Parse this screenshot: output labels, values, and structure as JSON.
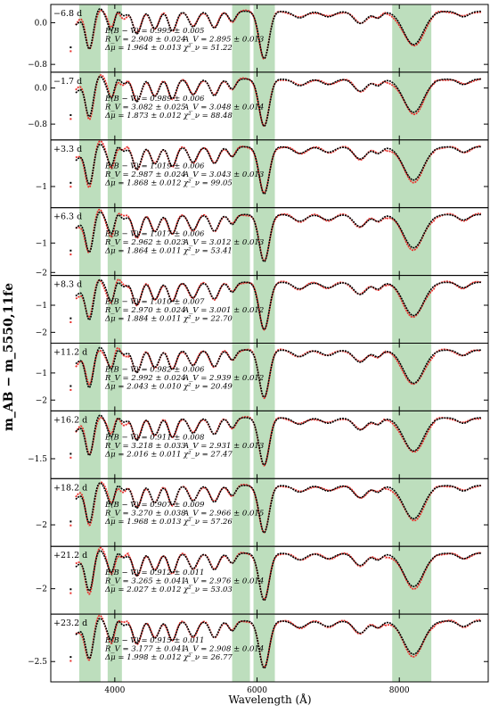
{
  "chart_data": {
    "type": "scatter",
    "description_axes": {
      "xlabel": "Wavelength (Å)",
      "ylabel": "m_AB − m_5550,11fe",
      "xlim": [
        3100,
        9250
      ],
      "x_ticks": [
        4000,
        6000,
        8000
      ]
    },
    "shaded_bands": [
      [
        3500,
        3800
      ],
      [
        3900,
        4100
      ],
      [
        5650,
        5900
      ],
      [
        5950,
        6250
      ],
      [
        7900,
        8450
      ]
    ],
    "series": [
      {
        "name": "",
        "color": "#000000"
      },
      {
        "name": "",
        "color": "#e8302c"
      }
    ],
    "panels": [
      {
        "phase": "−6.8 d",
        "ylim": [
          -0.95,
          0.35
        ],
        "yticks": [
          0.0,
          -0.8
        ],
        "ytick_labels": [
          "0.0",
          "−0.8"
        ],
        "ebv": "E(B − V) = 0.995 ± 0.005",
        "rv": "R_V = 2.908 ± 0.024",
        "av": "A_V = 2.895 ± 0.013",
        "dmu": "Δμ = 1.964 ± 0.013",
        "chi": "χ²_ν = 51.22"
      },
      {
        "phase": "−1.7 d",
        "ylim": [
          -1.15,
          0.35
        ],
        "yticks": [
          0.0,
          -0.8
        ],
        "ytick_labels": [
          "0.0",
          "−0.8"
        ],
        "ebv": "E(B − V) = 0.989 ± 0.006",
        "rv": "R_V = 3.082 ± 0.025",
        "av": "A_V = 3.048 ± 0.014",
        "dmu": "Δμ = 1.873 ± 0.012",
        "chi": "χ²_ν = 88.48"
      },
      {
        "phase": "+3.3 d",
        "ylim": [
          -1.5,
          0.1
        ],
        "yticks": [
          -1
        ],
        "ytick_labels": [
          "−1"
        ],
        "ebv": "E(B − V) = 1.019 ± 0.006",
        "rv": "R_V = 2.987 ± 0.024",
        "av": "A_V = 3.043 ± 0.013",
        "dmu": "Δμ = 1.868 ± 0.012",
        "chi": "χ²_ν = 99.05"
      },
      {
        "phase": "+6.3 d",
        "ylim": [
          -2.1,
          0.2
        ],
        "yticks": [
          -1,
          -2
        ],
        "ytick_labels": [
          "−1",
          "−2"
        ],
        "ebv": "E(B − V) = 1.017 ± 0.006",
        "rv": "R_V = 2.962 ± 0.023",
        "av": "A_V = 3.012 ± 0.013",
        "dmu": "Δμ = 1.864 ± 0.011",
        "chi": "χ²_ν = 53.41"
      },
      {
        "phase": "+8.3 d",
        "ylim": [
          -2.4,
          0.1
        ],
        "yticks": [
          -1,
          -2
        ],
        "ytick_labels": [
          "−1",
          "−2"
        ],
        "ebv": "E(B − V) = 1.010 ± 0.007",
        "rv": "R_V = 2.970 ± 0.024",
        "av": "A_V = 3.001 ± 0.012",
        "dmu": "Δμ = 1.884 ± 0.011",
        "chi": "χ²_ν = 22.70"
      },
      {
        "phase": "+11.2 d",
        "ylim": [
          -2.4,
          0.1
        ],
        "yticks": [
          -1,
          -2
        ],
        "ytick_labels": [
          "−1",
          "−2"
        ],
        "ebv": "E(B − V) = 0.982 ± 0.006",
        "rv": "R_V = 2.992 ± 0.024",
        "av": "A_V = 2.939 ± 0.012",
        "dmu": "Δμ = 2.043 ± 0.010",
        "chi": "χ²_ν = 20.49"
      },
      {
        "phase": "+16.2 d",
        "ylim": [
          -2.0,
          -0.3
        ],
        "yticks": [
          -1.5
        ],
        "ytick_labels": [
          "−1.5"
        ],
        "ebv": "E(B − V) = 0.911 ± 0.008",
        "rv": "R_V = 3.218 ± 0.033",
        "av": "A_V = 2.931 ± 0.013",
        "dmu": "Δμ = 2.016 ± 0.011",
        "chi": "χ²_ν = 27.47"
      },
      {
        "phase": "+18.2 d",
        "ylim": [
          -2.7,
          -0.5
        ],
        "yticks": [
          -2
        ],
        "ytick_labels": [
          "−2"
        ],
        "ebv": "E(B − V) = 0.907 ± 0.009",
        "rv": "R_V = 3.270 ± 0.038",
        "av": "A_V = 2.966 ± 0.015",
        "dmu": "Δμ = 1.968 ± 0.013",
        "chi": "χ²_ν = 57.26"
      },
      {
        "phase": "+21.2 d",
        "ylim": [
          -2.9,
          -0.5
        ],
        "yticks": [
          -2
        ],
        "ytick_labels": [
          "−2"
        ],
        "ebv": "E(B − V) = 0.912 ± 0.011",
        "rv": "R_V = 3.265 ± 0.041",
        "av": "A_V = 2.976 ± 0.014",
        "dmu": "Δμ = 2.027 ± 0.012",
        "chi": "χ²_ν = 53.03"
      },
      {
        "phase": "+23.2 d",
        "ylim": [
          -3.1,
          -1.1
        ],
        "yticks": [
          -2.5
        ],
        "ytick_labels": [
          "−2.5"
        ],
        "ebv": "E(B − V) = 0.915 ± 0.011",
        "rv": "R_V = 3.177 ± 0.041",
        "av": "A_V = 2.908 ± 0.014",
        "dmu": "Δμ = 1.998 ± 0.012",
        "chi": "χ²_ν = 26.77"
      }
    ]
  }
}
